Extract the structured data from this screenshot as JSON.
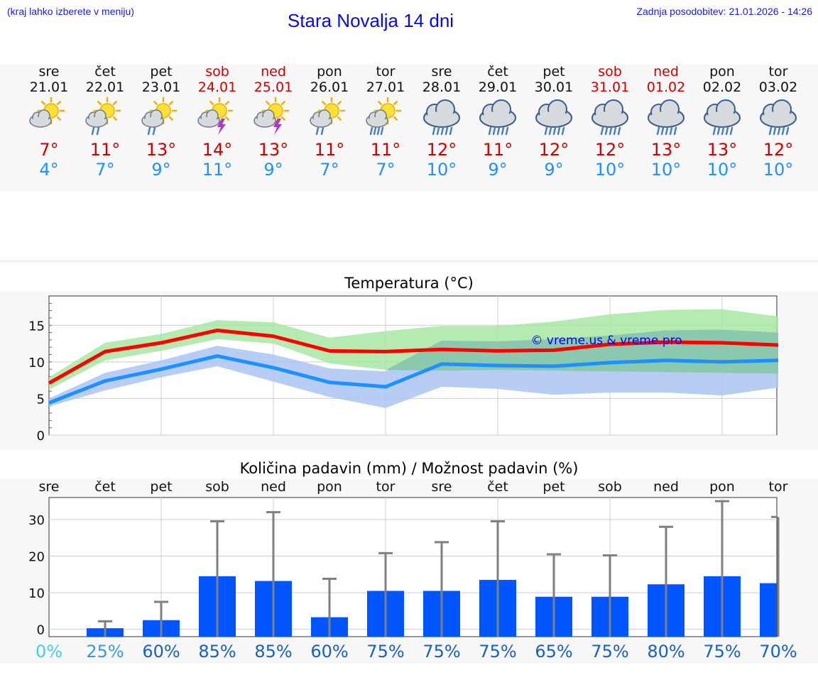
{
  "header": {
    "hint": "(kraj lahko izberete v meniju)",
    "title": "Stara Novalja 14 dni",
    "updated": "Zadnja posodobitev: 21.01.2026 - 14:26"
  },
  "days": [
    {
      "name": "sre",
      "date": "21.01",
      "weekend": false,
      "icon": "sun-cloud-icon",
      "tmax": "7°",
      "tmin": "4°",
      "prob": "0%"
    },
    {
      "name": "čet",
      "date": "22.01",
      "weekend": false,
      "icon": "sun-cloud-rain-icon",
      "tmax": "11°",
      "tmin": "7°",
      "prob": "25%"
    },
    {
      "name": "pet",
      "date": "23.01",
      "weekend": false,
      "icon": "sun-cloud-rain-icon",
      "tmax": "13°",
      "tmin": "9°",
      "prob": "60%"
    },
    {
      "name": "sob",
      "date": "24.01",
      "weekend": true,
      "icon": "sun-cloud-storm-icon",
      "tmax": "14°",
      "tmin": "11°",
      "prob": "85%"
    },
    {
      "name": "ned",
      "date": "25.01",
      "weekend": true,
      "icon": "sun-cloud-storm-icon",
      "tmax": "13°",
      "tmin": "9°",
      "prob": "85%"
    },
    {
      "name": "pon",
      "date": "26.01",
      "weekend": false,
      "icon": "sun-cloud-rain-icon",
      "tmax": "11°",
      "tmin": "7°",
      "prob": "60%"
    },
    {
      "name": "tor",
      "date": "27.01",
      "weekend": false,
      "icon": "sun-cloud-heavy-rain-icon",
      "tmax": "11°",
      "tmin": "7°",
      "prob": "75%"
    },
    {
      "name": "sre",
      "date": "28.01",
      "weekend": false,
      "icon": "cloud-heavy-rain-icon",
      "tmax": "12°",
      "tmin": "10°",
      "prob": "75%"
    },
    {
      "name": "čet",
      "date": "29.01",
      "weekend": false,
      "icon": "cloud-heavy-rain-icon",
      "tmax": "11°",
      "tmin": "9°",
      "prob": "75%"
    },
    {
      "name": "pet",
      "date": "30.01",
      "weekend": false,
      "icon": "cloud-heavy-rain-icon",
      "tmax": "12°",
      "tmin": "9°",
      "prob": "65%"
    },
    {
      "name": "sob",
      "date": "31.01",
      "weekend": true,
      "icon": "cloud-heavy-rain-icon",
      "tmax": "12°",
      "tmin": "10°",
      "prob": "75%"
    },
    {
      "name": "ned",
      "date": "01.02",
      "weekend": true,
      "icon": "cloud-heavy-rain-icon",
      "tmax": "13°",
      "tmin": "10°",
      "prob": "80%"
    },
    {
      "name": "pon",
      "date": "02.02",
      "weekend": false,
      "icon": "cloud-heavy-rain-icon",
      "tmax": "13°",
      "tmin": "10°",
      "prob": "75%"
    },
    {
      "name": "tor",
      "date": "03.02",
      "weekend": false,
      "icon": "cloud-heavy-rain-icon",
      "tmax": "12°",
      "tmin": "10°",
      "prob": "70%"
    }
  ],
  "colors": {
    "max": "#ff0000",
    "min": "#1e90ff",
    "max_band": "#a8e6a3",
    "min_band": "#aac4f2",
    "overlap_band": "#86c9a6",
    "bar": "#0055ff",
    "whisker": "#808080",
    "title": "#0a0ae0"
  },
  "chart_data": [
    {
      "type": "line",
      "title": "Temperatura (°C)",
      "watermark": "© vreme.us & vreme.pro",
      "x": [
        "sre 21.01",
        "čet 22.01",
        "pet 23.01",
        "sob 24.01",
        "ned 25.01",
        "pon 26.01",
        "tor 27.01",
        "sre 28.01",
        "čet 29.01",
        "pet 30.01",
        "sob 31.01",
        "ned 01.02",
        "pon 02.02",
        "tor 03.02"
      ],
      "ylim": [
        0,
        19
      ],
      "yticks": [
        0,
        5,
        10,
        15
      ],
      "series": [
        {
          "name": "max",
          "values": [
            7.1,
            11.4,
            12.6,
            14.3,
            13.5,
            11.5,
            11.4,
            11.7,
            11.5,
            11.6,
            12.4,
            12.7,
            12.6,
            12.3
          ],
          "band_low": [
            6.2,
            10.2,
            11.5,
            13.1,
            12.5,
            9.8,
            8.9,
            8.8,
            8.9,
            8.8,
            8.7,
            8.6,
            8.5,
            8.4
          ],
          "band_high": [
            7.9,
            12.6,
            13.8,
            15.7,
            15.4,
            13.3,
            14.2,
            14.9,
            14.9,
            15.5,
            16.5,
            17.1,
            17.2,
            16.2
          ]
        },
        {
          "name": "min",
          "values": [
            4.4,
            7.4,
            9.0,
            10.8,
            9.2,
            7.2,
            6.6,
            9.7,
            9.5,
            9.4,
            9.9,
            10.2,
            10.0,
            10.2
          ],
          "band_low": [
            3.9,
            6.1,
            7.9,
            9.4,
            7.3,
            5.2,
            3.7,
            6.6,
            6.3,
            5.5,
            5.8,
            5.8,
            5.4,
            6.5
          ],
          "band_high": [
            5.0,
            8.5,
            10.2,
            12.2,
            11.0,
            9.1,
            8.7,
            12.9,
            12.8,
            13.1,
            13.6,
            14.3,
            14.4,
            14.0
          ]
        }
      ]
    },
    {
      "type": "bar",
      "title": "Količina padavin (mm) / Možnost padavin (%)",
      "categories": [
        "sre",
        "čet",
        "pet",
        "sob",
        "ned",
        "pon",
        "tor",
        "sre",
        "čet",
        "pet",
        "sob",
        "ned",
        "pon",
        "tor"
      ],
      "ylim": [
        -2,
        36
      ],
      "yticks": [
        0,
        10,
        20,
        30
      ],
      "values": [
        0,
        0.3,
        2.5,
        14.5,
        13.2,
        3.3,
        10.5,
        10.5,
        13.5,
        8.9,
        8.9,
        12.3,
        14.5,
        12.6
      ],
      "max_values": [
        0,
        2.2,
        7.5,
        29.5,
        32.0,
        13.8,
        20.8,
        23.8,
        29.5,
        20.5,
        20.2,
        28.0,
        35.0,
        30.7
      ],
      "probabilities": [
        "0%",
        "25%",
        "60%",
        "85%",
        "85%",
        "60%",
        "75%",
        "75%",
        "75%",
        "65%",
        "75%",
        "80%",
        "75%",
        "70%"
      ]
    }
  ]
}
